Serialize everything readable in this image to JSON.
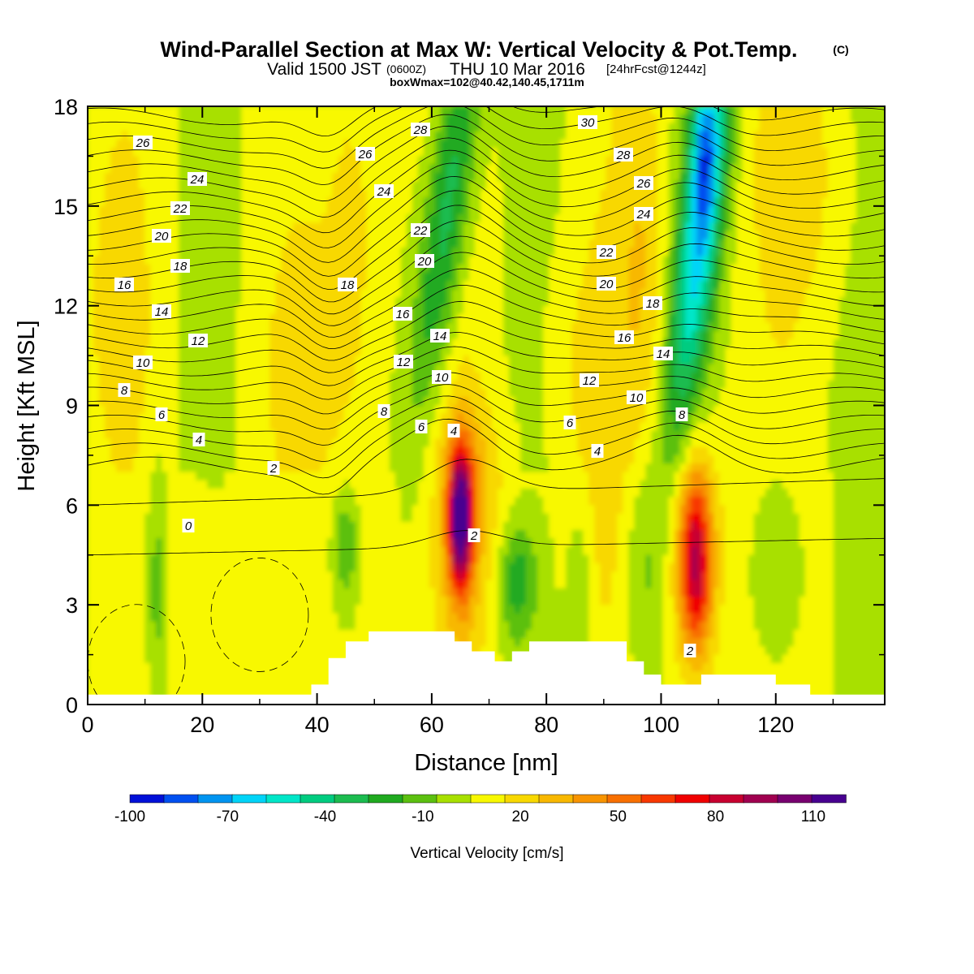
{
  "chart_data": {
    "type": "heatmap",
    "title": "Wind-Parallel Section at Max W: Vertical Velocity & Pot.Temp.",
    "title_mark": "(C)",
    "subtitle_main": "Valid 1500 JST",
    "subtitle_utc": "(0600Z)",
    "subtitle_date": "THU 10 Mar 2016",
    "subtitle_fcst": "[24hrFcst@1244z]",
    "subtitle2": "boxWmax=102@40.42,140.45,1711m",
    "xlabel": "Distance [nm]",
    "ylabel": "Height [Kft MSL]",
    "xlim": [
      0,
      139
    ],
    "ylim": [
      0,
      18
    ],
    "x_ticks": [
      "0",
      "20",
      "40",
      "60",
      "80",
      "100",
      "120"
    ],
    "y_ticks": [
      "0",
      "3",
      "6",
      "9",
      "12",
      "15",
      "18"
    ],
    "colorbar": {
      "title": "Vertical Velocity [cm/s]",
      "min": -100,
      "max": 110,
      "step": 10,
      "tick_labels": [
        "-100",
        "-70",
        "-40",
        "-10",
        "20",
        "50",
        "80",
        "110"
      ],
      "colors": [
        "#0010d8",
        "#0050f0",
        "#0094f0",
        "#00d4f8",
        "#00e6c8",
        "#00cc80",
        "#1cbc50",
        "#20aa20",
        "#5cc010",
        "#a8e000",
        "#f8f800",
        "#f8d800",
        "#f8b800",
        "#f89400",
        "#f87000",
        "#f83800",
        "#f00000",
        "#c80030",
        "#a00050",
        "#780070",
        "#480090"
      ]
    },
    "vertical_velocity_cores": [
      {
        "x": 65,
        "y": 5.2,
        "value": 105
      },
      {
        "x": 106,
        "y": 4.3,
        "value": 75
      },
      {
        "x": 107,
        "y": 15.5,
        "value": -80
      },
      {
        "x": 60,
        "y": 15,
        "value": -40
      }
    ],
    "theta_contours": {
      "units": "deg C",
      "label_values": [
        "0",
        "2",
        "4",
        "6",
        "8",
        "10",
        "12",
        "14",
        "16",
        "18",
        "20",
        "22",
        "24",
        "26",
        "28",
        "30"
      ]
    },
    "terrain_profile": [
      [
        0,
        0.3
      ],
      [
        39,
        0.3
      ],
      [
        39,
        0.6
      ],
      [
        42,
        0.6
      ],
      [
        42,
        1.4
      ],
      [
        45,
        1.4
      ],
      [
        45,
        1.9
      ],
      [
        49,
        1.9
      ],
      [
        49,
        2.2
      ],
      [
        64,
        2.2
      ],
      [
        64,
        1.9
      ],
      [
        67,
        1.9
      ],
      [
        67,
        1.6
      ],
      [
        71,
        1.6
      ],
      [
        71,
        1.3
      ],
      [
        74,
        1.3
      ],
      [
        74,
        1.6
      ],
      [
        77,
        1.6
      ],
      [
        77,
        1.9
      ],
      [
        94,
        1.9
      ],
      [
        94,
        1.3
      ],
      [
        97,
        1.3
      ],
      [
        97,
        0.9
      ],
      [
        100,
        0.9
      ],
      [
        100,
        0.6
      ],
      [
        107,
        0.6
      ],
      [
        107,
        0.9
      ],
      [
        120,
        0.9
      ],
      [
        120,
        0.6
      ],
      [
        126,
        0.6
      ],
      [
        126,
        0.3
      ],
      [
        139,
        0.3
      ]
    ]
  }
}
